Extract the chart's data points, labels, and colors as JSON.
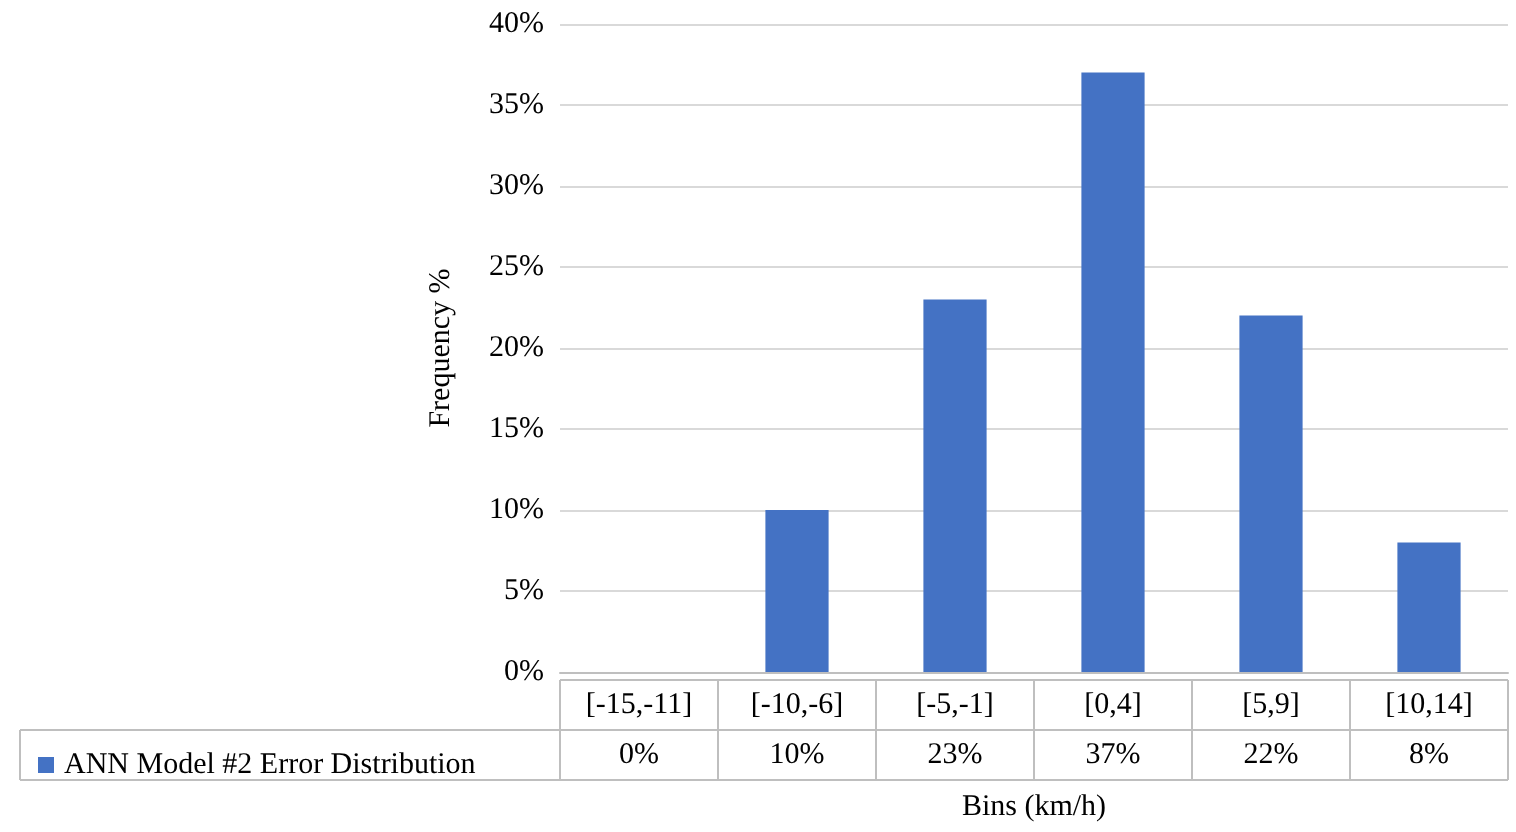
{
  "chart_data": {
    "type": "bar",
    "xlabel": "Bins (km/h)",
    "ylabel": "Frequency %",
    "categories": [
      "[-15,-11]",
      "[-10,-6]",
      "[-5,-1]",
      "[0,4]",
      "[5,9]",
      "[10,14]"
    ],
    "series": [
      {
        "name": "ANN Model #2 Error Distribution",
        "color": "#4472c4",
        "values": [
          0,
          10,
          23,
          37,
          22,
          8
        ],
        "value_labels": [
          "0%",
          "10%",
          "23%",
          "37%",
          "22%",
          "8%"
        ]
      }
    ],
    "ylim": [
      0,
      40
    ],
    "yticks": [
      {
        "value": 0,
        "label": "0%"
      },
      {
        "value": 5,
        "label": "5%"
      },
      {
        "value": 10,
        "label": "10%"
      },
      {
        "value": 15,
        "label": "15%"
      },
      {
        "value": 20,
        "label": "20%"
      },
      {
        "value": 25,
        "label": "25%"
      },
      {
        "value": 30,
        "label": "30%"
      },
      {
        "value": 35,
        "label": "35%"
      },
      {
        "value": 40,
        "label": "40%"
      }
    ],
    "grid": "y",
    "legend": "bottom left"
  }
}
